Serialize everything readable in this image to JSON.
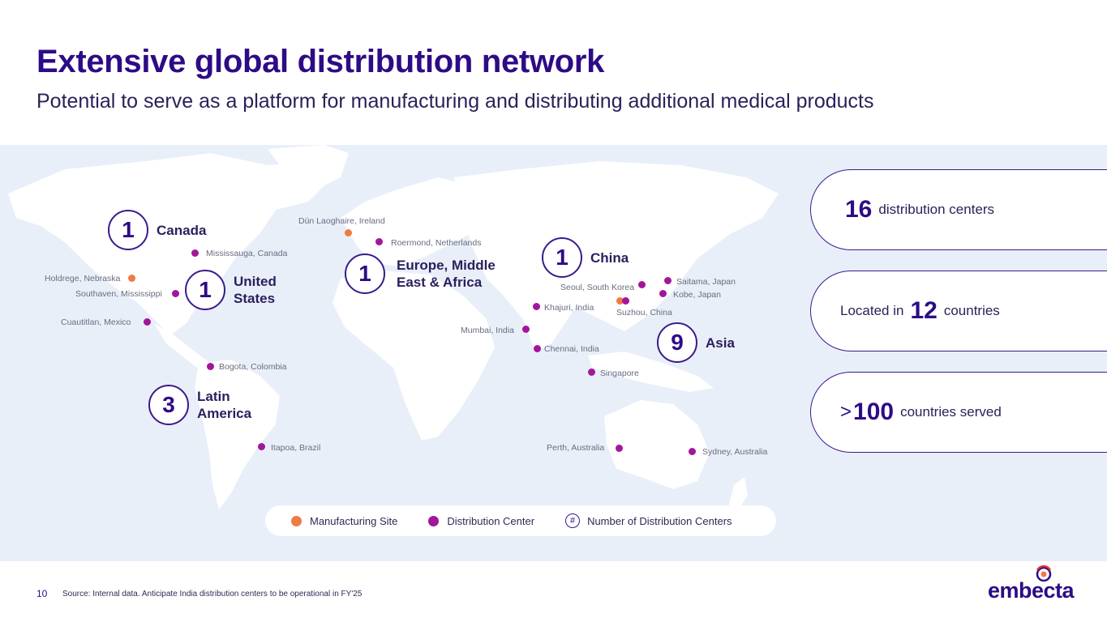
{
  "header": {
    "title": "Extensive global distribution network",
    "subtitle": "Potential to serve as a platform for manufacturing and distributing additional medical products"
  },
  "regions": {
    "canada": {
      "count": "1",
      "label": "Canada"
    },
    "united_states": {
      "count": "1",
      "label": "United States"
    },
    "latin_america": {
      "count": "3",
      "label": "Latin America"
    },
    "emea": {
      "count": "1",
      "label": "Europe, Middle East & Africa"
    },
    "china": {
      "count": "1",
      "label": "China"
    },
    "asia": {
      "count": "9",
      "label": "Asia"
    }
  },
  "places": {
    "dun_laoghaire": "Dún Laoghaire, Ireland",
    "roermond": "Roermond, Netherlands",
    "mississauga": "Mississauga, Canada",
    "holdrege": "Holdrege, Nebraska",
    "southaven": "Southaven, Mississippi",
    "cuautitlan": "Cuautitlan, Mexico",
    "bogota": "Bogota, Colombia",
    "itapoa": "Itapoa, Brazil",
    "seoul": "Seoul, South Korea",
    "saitama": "Saitama, Japan",
    "kobe": "Kobe, Japan",
    "suzhou": "Suzhou, China",
    "khajuri": "Khajuri, India",
    "mumbai": "Mumbai, India",
    "chennai": "Chennai, India",
    "singapore": "Singapore",
    "perth": "Perth, Australia",
    "sydney": "Sydney, Australia"
  },
  "legend": {
    "manufacturing": "Manufacturing Site",
    "distribution": "Distribution Center",
    "hash_symbol": "#",
    "number": "Number of Distribution Centers"
  },
  "stats": [
    {
      "prefix": "",
      "value": "16",
      "suffix": "distribution centers"
    },
    {
      "prefix": "Located in",
      "value": "12",
      "suffix": "countries"
    },
    {
      "prefix": ">",
      "value": "100",
      "suffix": "countries served"
    }
  ],
  "footer": {
    "page_number": "10",
    "source": "Source: Internal data. Anticipate India distribution centers to be operational in FY'25"
  },
  "logo": {
    "text": "embecta"
  },
  "colors": {
    "primary": "#2e0b86",
    "distribution_dot": "#a3169a",
    "manufacturing_dot": "#f07a45",
    "map_background": "#e8eff9"
  }
}
